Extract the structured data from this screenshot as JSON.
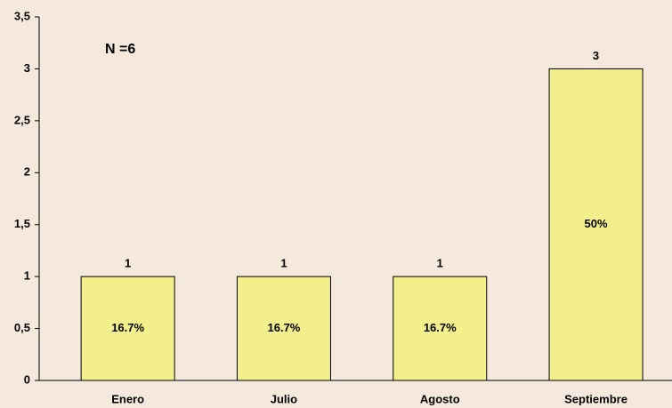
{
  "chart_data": {
    "type": "bar",
    "categories": [
      "Enero",
      "Julio",
      "Agosto",
      "Septiembre"
    ],
    "values": [
      1,
      1,
      1,
      3
    ],
    "percent_labels": [
      "16.7%",
      "16.7%",
      "16.7%",
      "50%"
    ],
    "color": "#f2ef8c",
    "annotation": "N =6",
    "ylim": [
      0,
      3.5
    ],
    "yticks": [
      0,
      {
        "value": 0.5,
        "label": "0,5"
      },
      1,
      {
        "value": 1.5,
        "label": "1,5"
      },
      2,
      {
        "value": 2.5,
        "label": "2,5"
      },
      3,
      {
        "value": 3.5,
        "label": "3,5"
      }
    ],
    "grid": false
  }
}
